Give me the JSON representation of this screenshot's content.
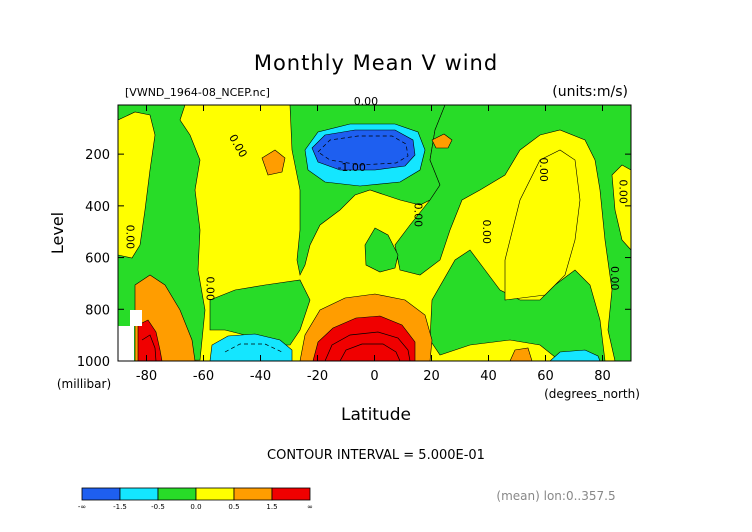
{
  "chart_data": {
    "type": "heatmap",
    "title": "Monthly Mean V wind",
    "file_label": "[VWND_1964-08_NCEP.nc]",
    "units_label": "(units:m/s)",
    "xlabel": "Latitude",
    "xunit": "(degrees_north)",
    "ylabel": "Level",
    "yunit": "(millibar)",
    "xlim": [
      -90,
      90
    ],
    "ylim": [
      1000,
      10
    ],
    "x_ticks": [
      -80,
      -60,
      -40,
      -20,
      0,
      20,
      40,
      60,
      80
    ],
    "y_ticks": [
      200,
      400,
      600,
      800,
      1000
    ],
    "contour_interval_text": "CONTOUR INTERVAL = 5.000E-01",
    "footer_note": "(mean) lon:0..357.5",
    "contour_labels": [
      {
        "text": "0.00",
        "lat": -3,
        "lev": 10
      },
      {
        "text": "0.00",
        "lat": -49,
        "lev": 175
      },
      {
        "text": "-1.00",
        "lat": -8,
        "lev": 265
      },
      {
        "text": "0.00",
        "lat": 58,
        "lev": 260
      },
      {
        "text": "0.00",
        "lat": 86,
        "lev": 345
      },
      {
        "text": "0.00",
        "lat": 14,
        "lev": 435
      },
      {
        "text": "0.00",
        "lat": 38,
        "lev": 500
      },
      {
        "text": "0.00",
        "lat": -87,
        "lev": 520
      },
      {
        "text": "0.00",
        "lat": 83,
        "lev": 680
      },
      {
        "text": "0.00",
        "lat": -59,
        "lev": 720
      }
    ],
    "colorbar": {
      "boundaries": [
        "-∞",
        "-1.5",
        "-0.5",
        "0.0",
        "0.5",
        "1.5",
        "∞"
      ],
      "colors": [
        "#1e5ff0",
        "#14e6ff",
        "#28dc28",
        "#ffff00",
        "#ff9d00",
        "#f00000"
      ]
    }
  }
}
